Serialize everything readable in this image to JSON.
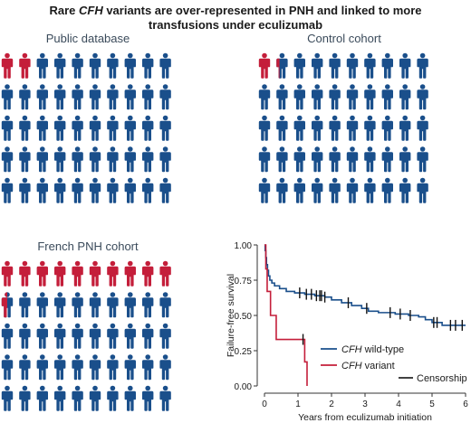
{
  "title": {
    "line1_pre": "Rare ",
    "line1_italic": "CFH",
    "line1_post": " variants are over-represented in PNH and linked to more",
    "line2": "transfusions under eculizumab"
  },
  "colors": {
    "variant": "#c41e3a",
    "wildtype": "#1a4f8b",
    "text": "#1a1a1a",
    "panel_title": "#3a4a5a",
    "axis": "#333333"
  },
  "icon_name": "person-icon",
  "pictograms": [
    {
      "title": "Public database",
      "columns": 10,
      "rows": 5,
      "total": 50,
      "variant_count": 2
    },
    {
      "title": "Control cohort",
      "columns": 10,
      "rows": 5,
      "total": 50,
      "variant_count": 1.3
    },
    {
      "title": "French PNH cohort",
      "columns": 10,
      "rows": 5,
      "total": 50,
      "variant_count": 10.5
    }
  ],
  "chart_data": {
    "type": "line",
    "title": "",
    "xlabel": "Years from eculizumab initiation",
    "ylabel": "Failure-free survival",
    "xlim": [
      0,
      6
    ],
    "ylim": [
      0,
      1
    ],
    "xticks": [
      "0",
      "1",
      "2",
      "3",
      "4",
      "5",
      "6"
    ],
    "yticks": [
      "0.00",
      "0.25",
      "0.50",
      "0.75",
      "1.00"
    ],
    "grid": false,
    "legend_position": "bottom-right",
    "series": [
      {
        "name": "CFH wild-type",
        "name_italic": "CFH",
        "name_rest": " wild-type",
        "color": "#1a4f8b",
        "step_points": [
          [
            0,
            1.0
          ],
          [
            0.02,
            0.96
          ],
          [
            0.04,
            0.91
          ],
          [
            0.06,
            0.86
          ],
          [
            0.09,
            0.82
          ],
          [
            0.12,
            0.78
          ],
          [
            0.16,
            0.75
          ],
          [
            0.22,
            0.73
          ],
          [
            0.3,
            0.71
          ],
          [
            0.45,
            0.69
          ],
          [
            0.65,
            0.67
          ],
          [
            0.9,
            0.66
          ],
          [
            1.2,
            0.65
          ],
          [
            1.5,
            0.64
          ],
          [
            1.8,
            0.63
          ],
          [
            2.0,
            0.61
          ],
          [
            2.3,
            0.59
          ],
          [
            2.6,
            0.57
          ],
          [
            2.9,
            0.55
          ],
          [
            3.1,
            0.53
          ],
          [
            3.4,
            0.52
          ],
          [
            3.9,
            0.51
          ],
          [
            4.3,
            0.5
          ],
          [
            4.6,
            0.49
          ],
          [
            4.8,
            0.47
          ],
          [
            5.0,
            0.45
          ],
          [
            5.3,
            0.43
          ],
          [
            6.0,
            0.43
          ]
        ],
        "censor_x": [
          1.05,
          1.25,
          1.4,
          1.55,
          1.65,
          1.7,
          1.8,
          2.5,
          3.05,
          3.75,
          4.05,
          4.35,
          5.05,
          5.15,
          5.55,
          5.7,
          5.9
        ]
      },
      {
        "name": "CFH variant",
        "name_italic": "CFH",
        "name_rest": " variant",
        "color": "#c41e3a",
        "step_points": [
          [
            0,
            1.0
          ],
          [
            0.04,
            0.83
          ],
          [
            0.08,
            0.67
          ],
          [
            0.18,
            0.5
          ],
          [
            0.35,
            0.33
          ],
          [
            1.15,
            0.33
          ],
          [
            1.2,
            0.17
          ],
          [
            1.27,
            0.0
          ]
        ],
        "censor_x": [
          1.15
        ]
      }
    ],
    "censor_legend": "Censorship"
  }
}
